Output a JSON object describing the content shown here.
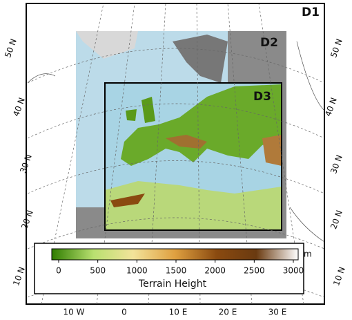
{
  "domains": [
    "D1",
    "D2",
    "D3"
  ],
  "latitude_labels_left": [
    "50 N",
    "40 N",
    "30 N",
    "20 N",
    "10 N"
  ],
  "latitude_labels_right": [
    "50 N",
    "40 N",
    "30 N",
    "20 N",
    "10 N"
  ],
  "longitude_labels": [
    "10 W",
    "0",
    "10 E",
    "20 E",
    "30 E"
  ],
  "colorbar": {
    "label": "Terrain Height",
    "unit": "m",
    "range": [
      0,
      3000
    ],
    "ticks": [
      0,
      500,
      1000,
      1500,
      2000,
      2500,
      3000
    ]
  }
}
